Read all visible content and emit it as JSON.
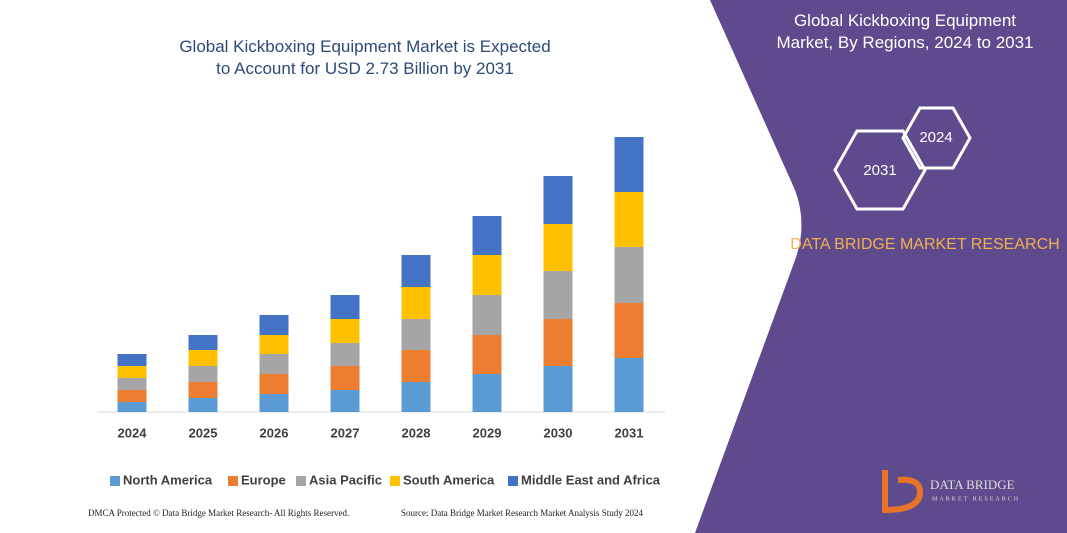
{
  "chart_data": {
    "type": "stacked_bar",
    "title": "Global Kickboxing Equipment Market is Expected to Account for USD 2.73 Billion by 2031",
    "categories": [
      "2024",
      "2025",
      "2026",
      "2027",
      "2028",
      "2029",
      "2030",
      "2031"
    ],
    "series": [
      {
        "name": "North America",
        "color": "#5b9bd5",
        "values": [
          10,
          14,
          18,
          22,
          30,
          38,
          46,
          54
        ]
      },
      {
        "name": "Europe",
        "color": "#ed7d31",
        "values": [
          12,
          16,
          20,
          24,
          32,
          39,
          47,
          55
        ]
      },
      {
        "name": "Asia Pacific",
        "color": "#a5a5a5",
        "values": [
          12,
          16,
          20,
          23,
          31,
          40,
          48,
          56
        ]
      },
      {
        "name": "South America",
        "color": "#ffc000",
        "values": [
          12,
          16,
          19,
          24,
          32,
          40,
          47,
          55
        ]
      },
      {
        "name": "Middle East and Africa",
        "color": "#4472c4",
        "values": [
          12,
          15,
          20,
          24,
          32,
          39,
          48,
          55
        ]
      }
    ],
    "ylim": [
      0,
      300
    ]
  },
  "panel": {
    "title": "Global Kickboxing Equipment Market, By Regions, 2024 to 2031",
    "hex_start": "2024",
    "hex_end": "2031",
    "brand": "DATA BRIDGE MARKET RESEARCH"
  },
  "logo": {
    "name": "DATA BRIDGE",
    "tagline": "MARKET RESEARCH"
  },
  "footer": {
    "left": "DMCA Protected © Data Bridge Market Research- All Rights Reserved.",
    "right": "Source: Data Bridge Market Research Market Analysis Study 2024"
  }
}
